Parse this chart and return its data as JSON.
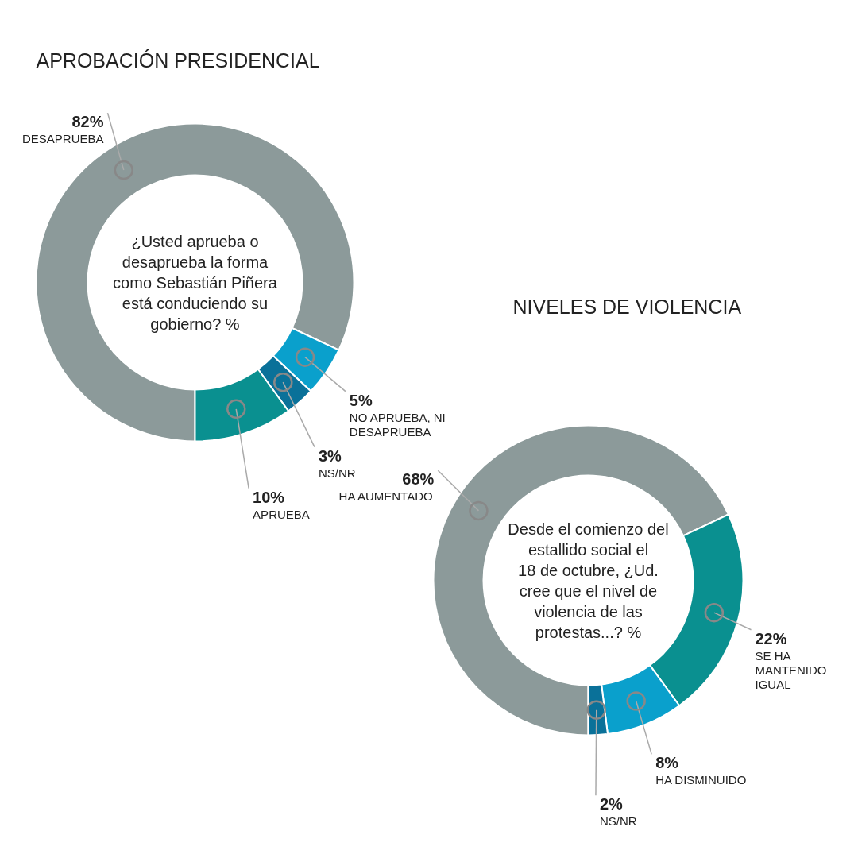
{
  "chart_data": [
    {
      "type": "donut",
      "title": "APROBACIÓN PRESIDENCIAL",
      "subtitle": "¿Usted aprueba o desaprueba la forma como Sebastián Piñera está conduciendo su gobierno? %",
      "categories": [
        "DESAPRUEBA",
        "NO APRUEBA, NI DESAPRUEBA",
        "NS/NR",
        "APRUEBA"
      ],
      "values": [
        82,
        5,
        3,
        10
      ],
      "colors": [
        "#8c9a9a",
        "#0aa0cc",
        "#0a7199",
        "#0a9090"
      ],
      "value_labels": [
        "82%",
        "5%",
        "3%",
        "10%"
      ]
    },
    {
      "type": "donut",
      "title": "NIVELES DE VIOLENCIA",
      "subtitle": "Desde el comienzo del estallido social el 18 de octubre, ¿Ud. cree que el nivel de violencia de las protestas...? %",
      "categories": [
        "HA AUMENTADO",
        "SE HA MANTENIDO IGUAL",
        "HA DISMINUIDO",
        "NS/NR"
      ],
      "values": [
        68,
        22,
        8,
        2
      ],
      "colors": [
        "#8c9a9a",
        "#0a9090",
        "#0aa0cc",
        "#0a7199"
      ],
      "value_labels": [
        "68%",
        "22%",
        "8%",
        "2%"
      ]
    }
  ]
}
